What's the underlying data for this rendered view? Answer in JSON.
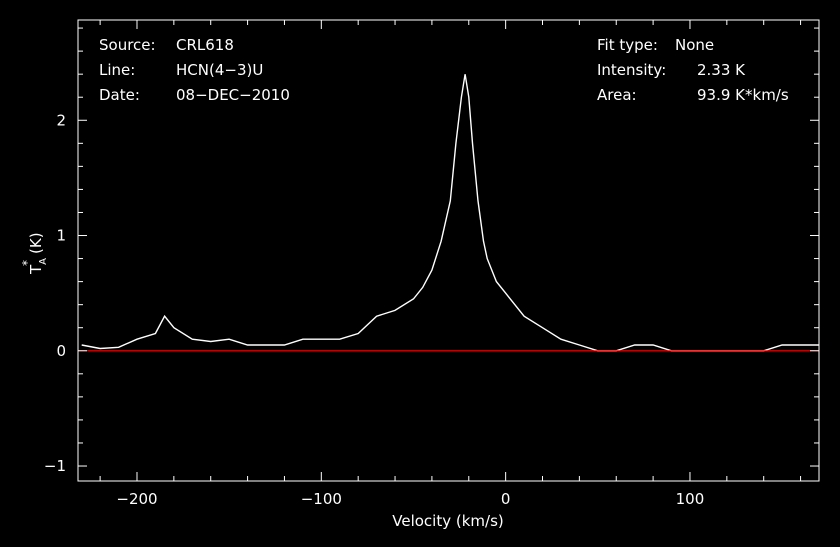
{
  "chart_data": {
    "type": "line",
    "info_left": [
      {
        "key": "Source:",
        "value": "CRL618"
      },
      {
        "key": "Line:",
        "value": "HCN(4−3)U"
      },
      {
        "key": "Date:",
        "value": "08−DEC−2010"
      }
    ],
    "info_right": [
      {
        "key": "Fit type:",
        "value": "None"
      },
      {
        "key": "Intensity:",
        "value": "2.33 K"
      },
      {
        "key": "Area:",
        "value": "93.9 K*km/s"
      }
    ],
    "xlabel": "Velocity (km/s)",
    "ylabel": "T",
    "ylabel_sub": "A",
    "ylabel_sup": "*",
    "ylabel_unit": "(K)",
    "xlim": [
      -232,
      170
    ],
    "ylim": [
      -1.13,
      2.87
    ],
    "x_ticks": [
      -200,
      -100,
      0,
      100
    ],
    "x_tick_labels": [
      "−200",
      "−100",
      "0",
      "100"
    ],
    "y_ticks": [
      -1,
      0,
      1,
      2
    ],
    "y_tick_labels": [
      "−1",
      "0",
      "1",
      "2"
    ],
    "baseline": 0,
    "colors": {
      "background": "#000000",
      "axes": "#ffffff",
      "spectrum": "#ffffff",
      "baseline": "#ff0000"
    },
    "series": [
      {
        "x": [
          -230,
          -220,
          -210,
          -200,
          -190,
          -185,
          -180,
          -170,
          -160,
          -150,
          -140,
          -130,
          -120,
          -110,
          -100,
          -90,
          -80,
          -70,
          -60,
          -50,
          -45,
          -40,
          -35,
          -30,
          -27,
          -24,
          -22,
          -20,
          -18,
          -15,
          -12,
          -10,
          -5,
          0,
          10,
          20,
          30,
          40,
          50,
          60,
          70,
          80,
          90,
          100,
          110,
          120,
          130,
          140,
          150,
          160,
          170
        ],
        "y": [
          0.05,
          0.02,
          0.03,
          0.1,
          0.15,
          0.3,
          0.2,
          0.1,
          0.08,
          0.1,
          0.05,
          0.05,
          0.05,
          0.1,
          0.1,
          0.1,
          0.15,
          0.3,
          0.35,
          0.45,
          0.55,
          0.7,
          0.95,
          1.3,
          1.8,
          2.2,
          2.4,
          2.2,
          1.8,
          1.3,
          0.95,
          0.8,
          0.6,
          0.5,
          0.3,
          0.2,
          0.1,
          0.05,
          0.0,
          0.0,
          0.05,
          0.05,
          0.0,
          0.0,
          0.0,
          0.0,
          0.0,
          0.0,
          0.05,
          0.05,
          0.05
        ]
      }
    ]
  }
}
